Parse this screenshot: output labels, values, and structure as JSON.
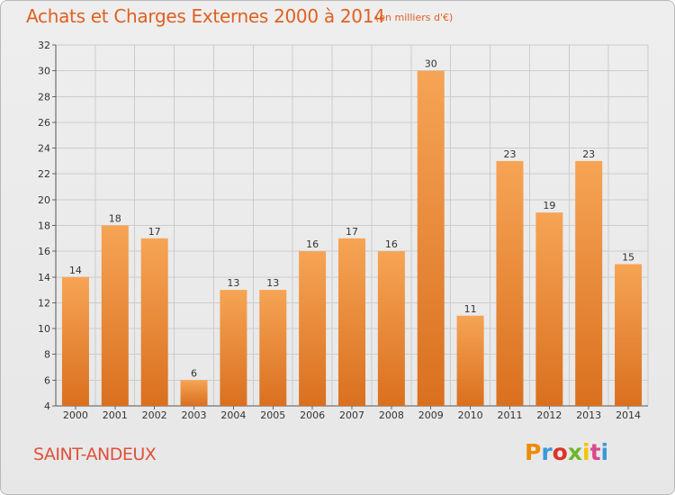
{
  "header": {
    "title": "Achats et Charges Externes 2000 à 2014",
    "subtitle": "(en milliers d'€)"
  },
  "footer": {
    "commune": "SAINT-ANDEUX",
    "logo": "Proxiti",
    "logo_colors": [
      "#f08a00",
      "#3a9ad9",
      "#e0312b",
      "#6bb82e",
      "#f5c400",
      "#d94a8c",
      "#3a9ad9"
    ]
  },
  "colors": {
    "bar_light": "#f6a455",
    "bar_dark": "#d9701f",
    "text_accent": "#e06020",
    "grid": "#cccccc"
  },
  "chart_data": {
    "type": "bar",
    "title": "Achats et Charges Externes 2000 à 2014",
    "subtitle": "(en milliers d'€)",
    "categories": [
      "2000",
      "2001",
      "2002",
      "2003",
      "2004",
      "2005",
      "2006",
      "2007",
      "2008",
      "2009",
      "2010",
      "2011",
      "2012",
      "2013",
      "2014"
    ],
    "values": [
      14,
      18,
      17,
      6,
      13,
      13,
      16,
      17,
      16,
      30,
      11,
      23,
      19,
      23,
      15
    ],
    "ylim": [
      4,
      32
    ],
    "yticks": [
      4,
      6,
      8,
      10,
      12,
      14,
      16,
      18,
      20,
      22,
      24,
      26,
      28,
      30,
      32
    ],
    "grid": true,
    "xlabel": "",
    "ylabel": ""
  }
}
